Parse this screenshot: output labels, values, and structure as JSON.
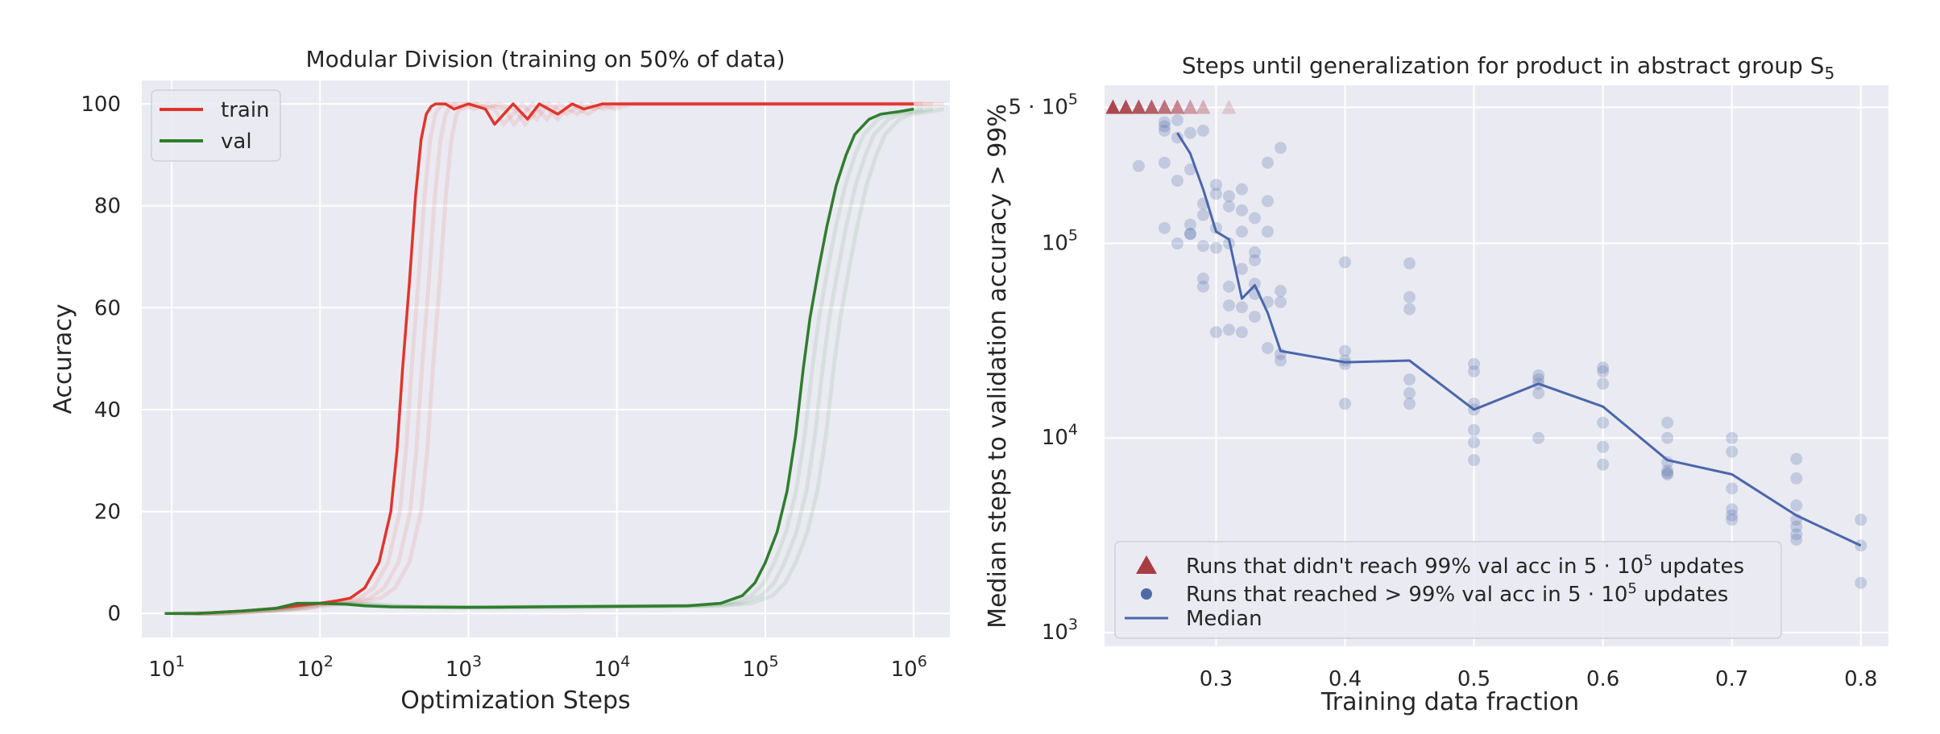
{
  "chart_data": [
    {
      "type": "line",
      "title": "Modular Division (training on 50% of data)",
      "xlabel": "Optimization Steps",
      "ylabel": "Accuracy",
      "xscale": "log",
      "xlim": [
        10,
        1000000
      ],
      "ylim": [
        0,
        100
      ],
      "x_ticks": [
        10,
        100,
        1000,
        10000,
        100000,
        1000000
      ],
      "y_ticks": [
        0,
        20,
        40,
        60,
        80,
        100
      ],
      "grid": true,
      "legend": "top-left",
      "series": [
        {
          "name": "train",
          "color": "#e0352b",
          "x": [
            9,
            15,
            30,
            50,
            70,
            100,
            130,
            160,
            200,
            250,
            300,
            330,
            360,
            400,
            440,
            480,
            520,
            560,
            600,
            700,
            800,
            1000,
            1300,
            1500,
            2000,
            2500,
            3000,
            4000,
            5000,
            6000,
            8000,
            10000,
            30000,
            100000,
            300000,
            1000000
          ],
          "y": [
            0,
            0,
            0.5,
            1,
            1.5,
            2,
            2.5,
            3,
            5,
            10,
            20,
            32,
            48,
            65,
            82,
            93,
            98,
            99.5,
            100,
            100,
            99,
            100,
            99,
            96,
            100,
            97,
            100,
            98,
            100,
            99,
            100,
            100,
            100,
            100,
            100,
            100
          ]
        },
        {
          "name": "val",
          "color": "#2e7d2e",
          "x": [
            9,
            15,
            30,
            50,
            70,
            100,
            150,
            200,
            300,
            1000,
            3000,
            10000,
            30000,
            50000,
            70000,
            85000,
            100000,
            120000,
            140000,
            160000,
            180000,
            200000,
            230000,
            260000,
            300000,
            350000,
            400000,
            500000,
            600000,
            800000,
            1000000
          ],
          "y": [
            0,
            0,
            0.5,
            1,
            2,
            2,
            1.8,
            1.5,
            1.3,
            1.2,
            1.3,
            1.4,
            1.5,
            2,
            3.5,
            6,
            10,
            16,
            24,
            35,
            48,
            58,
            68,
            76,
            84,
            90,
            94,
            97,
            98,
            98.5,
            99
          ]
        }
      ]
    },
    {
      "type": "scatter",
      "title": "Steps until generalization for product in abstract group S",
      "title_subscript": "5",
      "xlabel": "Training data fraction",
      "ylabel": "Median steps to validation accuracy > 99%",
      "yscale": "log",
      "xlim": [
        0.21,
        0.82
      ],
      "ylim": [
        1000,
        600000
      ],
      "x_ticks": [
        0.3,
        0.4,
        0.5,
        0.6,
        0.7,
        0.8
      ],
      "x_tick_labels": [
        "0.3",
        "0.4",
        "0.5",
        "0.6",
        "0.7",
        "0.8"
      ],
      "y_ticks": [
        1000,
        10000,
        100000,
        500000
      ],
      "y_tick_labels": [
        {
          "base": "10",
          "exp": "3"
        },
        {
          "base": "10",
          "exp": "4"
        },
        {
          "base": "10",
          "exp": "5"
        },
        {
          "base": "5 · 10",
          "exp": "5"
        }
      ],
      "grid": true,
      "legend": "bottom-left",
      "legend_entries": [
        {
          "marker": "triangle",
          "color": "#a83c44",
          "pre": "Runs that didn't reach 99% val acc in 5 · 10",
          "exp": "5",
          "post": " updates"
        },
        {
          "marker": "circle",
          "color": "#4f6aa8",
          "pre": "Runs that reached > 99% val acc in 5 · 10",
          "exp": "5",
          "post": " updates"
        },
        {
          "marker": "line",
          "color": "#4a66ab",
          "pre": "Median",
          "exp": "",
          "post": ""
        }
      ],
      "colors": {
        "points": "#4f6aa8",
        "failed": "#a83c44",
        "median": "#4a66ab"
      },
      "failed_runs": [
        {
          "x": 0.22,
          "y": 500000,
          "alpha": 0.95
        },
        {
          "x": 0.23,
          "y": 500000,
          "alpha": 0.9
        },
        {
          "x": 0.24,
          "y": 500000,
          "alpha": 0.85
        },
        {
          "x": 0.25,
          "y": 500000,
          "alpha": 0.8
        },
        {
          "x": 0.26,
          "y": 500000,
          "alpha": 0.7
        },
        {
          "x": 0.27,
          "y": 500000,
          "alpha": 0.6
        },
        {
          "x": 0.28,
          "y": 500000,
          "alpha": 0.45
        },
        {
          "x": 0.29,
          "y": 500000,
          "alpha": 0.35
        },
        {
          "x": 0.31,
          "y": 500000,
          "alpha": 0.2
        }
      ],
      "runs": {
        "x": [
          0.24,
          0.26,
          0.26,
          0.26,
          0.26,
          0.26,
          0.27,
          0.27,
          0.27,
          0.27,
          0.28,
          0.28,
          0.28,
          0.28,
          0.28,
          0.29,
          0.29,
          0.29,
          0.29,
          0.29,
          0.29,
          0.3,
          0.3,
          0.3,
          0.3,
          0.3,
          0.31,
          0.31,
          0.31,
          0.31,
          0.31,
          0.31,
          0.32,
          0.32,
          0.32,
          0.32,
          0.32,
          0.32,
          0.33,
          0.33,
          0.33,
          0.33,
          0.33,
          0.33,
          0.34,
          0.34,
          0.34,
          0.34,
          0.34,
          0.35,
          0.35,
          0.35,
          0.35,
          0.35,
          0.4,
          0.4,
          0.4,
          0.4,
          0.4,
          0.45,
          0.45,
          0.45,
          0.45,
          0.45,
          0.45,
          0.5,
          0.5,
          0.5,
          0.5,
          0.5,
          0.5,
          0.5,
          0.55,
          0.55,
          0.55,
          0.55,
          0.55,
          0.6,
          0.6,
          0.6,
          0.6,
          0.6,
          0.6,
          0.65,
          0.65,
          0.65,
          0.65,
          0.65,
          0.65,
          0.7,
          0.7,
          0.7,
          0.7,
          0.7,
          0.7,
          0.75,
          0.75,
          0.75,
          0.75,
          0.75,
          0.75,
          0.75,
          0.8,
          0.8,
          0.8
        ],
        "y": [
          250000,
          420000,
          380000,
          260000,
          120000,
          400000,
          210000,
          100000,
          430000,
          350000,
          370000,
          240000,
          125000,
          112000,
          112000,
          380000,
          160000,
          140000,
          60000,
          66000,
          97000,
          200000,
          180000,
          35000,
          120000,
          95000,
          155000,
          175000,
          100000,
          60000,
          48000,
          36000,
          190000,
          148000,
          115000,
          74000,
          47000,
          35000,
          82000,
          90000,
          62000,
          55000,
          42000,
          135000,
          260000,
          165000,
          115000,
          50000,
          29000,
          310000,
          57000,
          50000,
          27000,
          25000,
          80000,
          28000,
          25000,
          24000,
          15000,
          79000,
          53000,
          46000,
          20000,
          17000,
          15000,
          24000,
          22000,
          15000,
          14000,
          11000,
          9500,
          7700,
          21000,
          20000,
          19000,
          17000,
          10000,
          23000,
          22000,
          19000,
          12000,
          9000,
          7300,
          12000,
          10000,
          7500,
          6800,
          6600,
          6500,
          10000,
          8500,
          5500,
          4300,
          4000,
          3800,
          7800,
          6200,
          4500,
          3800,
          3500,
          3200,
          3000,
          3800,
          2800,
          1800
        ]
      },
      "median": {
        "x": [
          0.27,
          0.28,
          0.29,
          0.3,
          0.31,
          0.32,
          0.33,
          0.34,
          0.35,
          0.4,
          0.45,
          0.5,
          0.55,
          0.6,
          0.65,
          0.7,
          0.75,
          0.8
        ],
        "y": [
          370000,
          290000,
          190000,
          115000,
          105000,
          52000,
          61000,
          44000,
          28000,
          24500,
          25000,
          14000,
          19000,
          14500,
          7700,
          6500,
          4000,
          2800
        ]
      }
    }
  ]
}
